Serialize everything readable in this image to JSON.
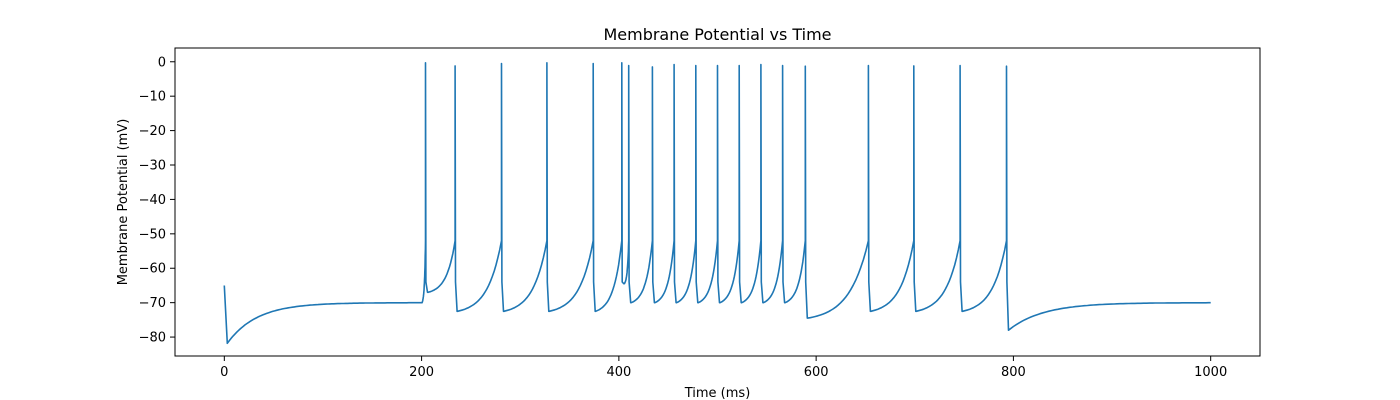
{
  "chart_data": {
    "type": "line",
    "title": "Membrane Potential vs Time",
    "xlabel": "Time (ms)",
    "ylabel": "Membrane Potential (mV)",
    "xlim": [
      -50,
      1050
    ],
    "ylim": [
      -85.5,
      4
    ],
    "xticks": [
      0,
      200,
      400,
      600,
      800,
      1000
    ],
    "yticks": [
      0,
      -10,
      -20,
      -30,
      -40,
      -50,
      -60,
      -70,
      -80
    ],
    "xtick_labels": [
      "0",
      "200",
      "400",
      "600",
      "800",
      "1000"
    ],
    "ytick_labels": [
      "0",
      "−10",
      "−20",
      "−30",
      "−40",
      "−50",
      "−60",
      "−70",
      "−80"
    ],
    "grid": false,
    "legend": false,
    "series": [
      {
        "color": "#1f77b4",
        "resting_potential": -70,
        "initial_potential": -65,
        "initial_minimum": -81.8,
        "stimulus_window": [
          200,
          800
        ],
        "spike_times": [
          204,
          234,
          281,
          327,
          374,
          403,
          410,
          434,
          456,
          478,
          500,
          522,
          544,
          566,
          589,
          653,
          699,
          746,
          793
        ],
        "spike_peaks": [
          -0.3,
          -1.2,
          -0.5,
          -0.3,
          -0.5,
          -0.3,
          -1.1,
          -1.5,
          -0.8,
          -1.1,
          -1.1,
          -1.1,
          -0.8,
          -1.1,
          -1.3,
          -1.1,
          -1.2,
          -1.1,
          -1.3
        ],
        "trough_values": [
          -67,
          -72.5,
          -72.5,
          -72.5,
          -72.5,
          -64.5,
          -70,
          -70,
          -70,
          -70,
          -70,
          -70,
          -70,
          -70,
          -74.5,
          -72.5,
          -72.5,
          -72.5,
          -78
        ]
      }
    ]
  }
}
